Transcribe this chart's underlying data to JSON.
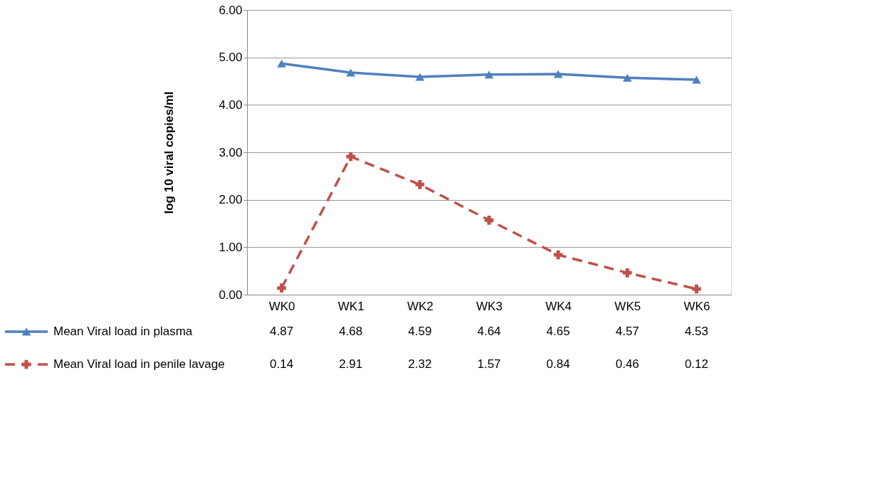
{
  "chart_data": {
    "type": "line",
    "ylabel": "log 10 viral copies/ml",
    "categories": [
      "WK0",
      "WK1",
      "WK2",
      "WK3",
      "WK4",
      "WK5",
      "WK6"
    ],
    "series": [
      {
        "name": "Mean Viral load in plasma",
        "color": "#4f81bd",
        "marker": "triangle",
        "line_style": "solid",
        "values": [
          4.87,
          4.68,
          4.59,
          4.64,
          4.65,
          4.57,
          4.53
        ]
      },
      {
        "name": "Mean Viral load in penile lavage",
        "color": "#c0504d",
        "marker": "cross",
        "line_style": "dashed",
        "values": [
          0.14,
          2.91,
          2.32,
          1.57,
          0.84,
          0.46,
          0.12
        ]
      }
    ],
    "ylim": [
      0,
      6
    ],
    "yticks": [
      {
        "value": 0,
        "label": "0.00"
      },
      {
        "value": 1,
        "label": "1.00"
      },
      {
        "value": 2,
        "label": "2.00"
      },
      {
        "value": 3,
        "label": "3.00"
      },
      {
        "value": 4,
        "label": "4.00"
      },
      {
        "value": 5,
        "label": "5.00"
      },
      {
        "value": 6,
        "label": "6.00"
      }
    ],
    "grid": "y",
    "legend": "bottom",
    "data_labels": true
  }
}
